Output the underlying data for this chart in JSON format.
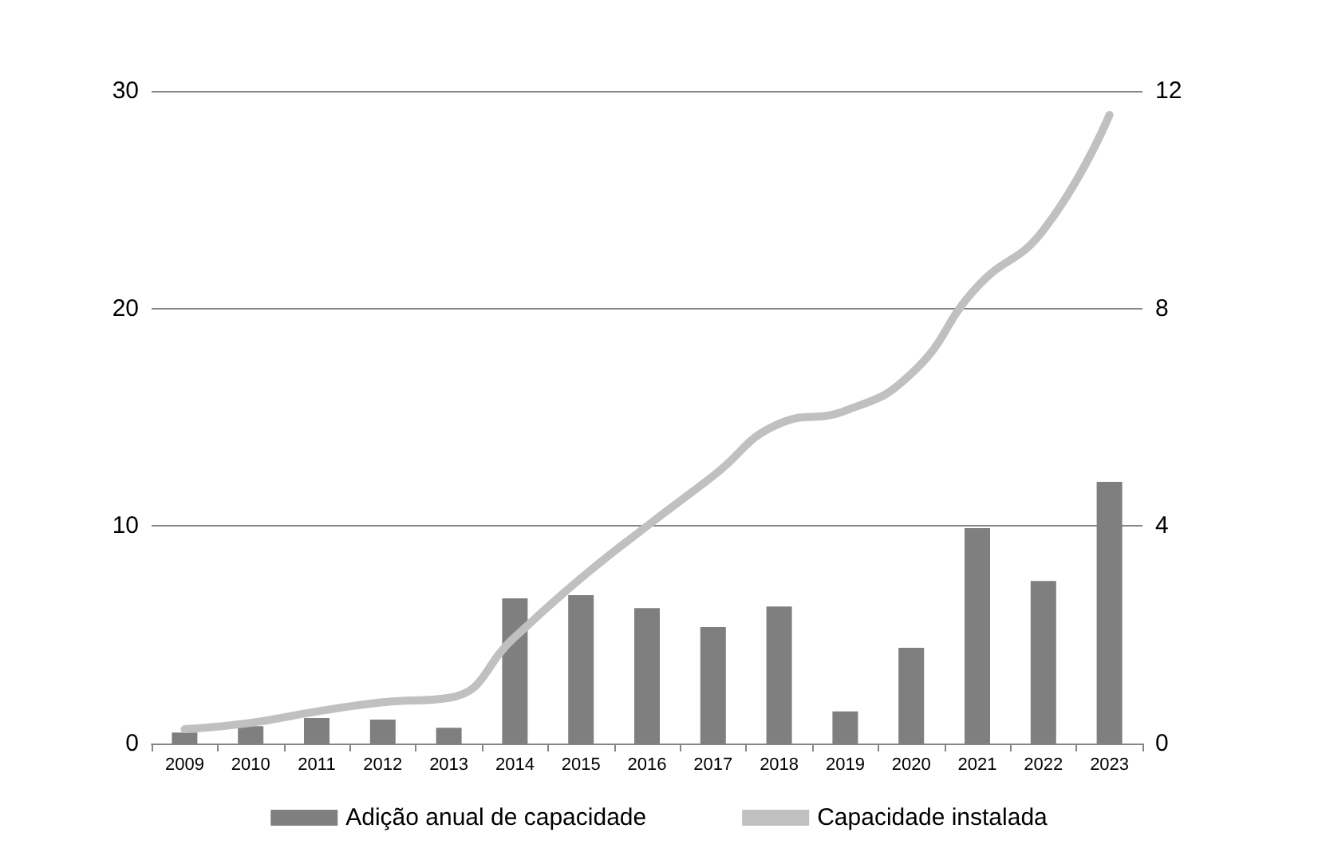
{
  "chart_data": {
    "type": "bar",
    "categories": [
      "2009",
      "2010",
      "2011",
      "2012",
      "2013",
      "2014",
      "2015",
      "2016",
      "2017",
      "2018",
      "2019",
      "2020",
      "2021",
      "2022",
      "2023"
    ],
    "series": [
      {
        "name": "Adição anual de capacidade",
        "axis": "y2",
        "color": "#7f7f7f",
        "values": [
          0.2,
          0.32,
          0.47,
          0.44,
          0.29,
          2.67,
          2.73,
          2.49,
          2.14,
          2.52,
          0.59,
          1.76,
          3.96,
          2.99,
          4.81
        ]
      },
      {
        "name": "Capacidade instalada",
        "type": "line",
        "axis": "y",
        "color": "#c0c0c0",
        "values": [
          0.66,
          0.95,
          1.47,
          1.9,
          2.1,
          4.9,
          7.6,
          10.0,
          12.3,
          14.7,
          15.3,
          17.0,
          21.0,
          23.6,
          28.9
        ]
      }
    ],
    "ylim": [
      0,
      30
    ],
    "yticks": [
      0,
      10,
      20,
      30
    ],
    "y2lim": [
      0,
      12
    ],
    "y2ticks": [
      0,
      4,
      8,
      12
    ],
    "grid": "y",
    "legend": "bottom",
    "marker": "none",
    "line_style": "solid"
  }
}
